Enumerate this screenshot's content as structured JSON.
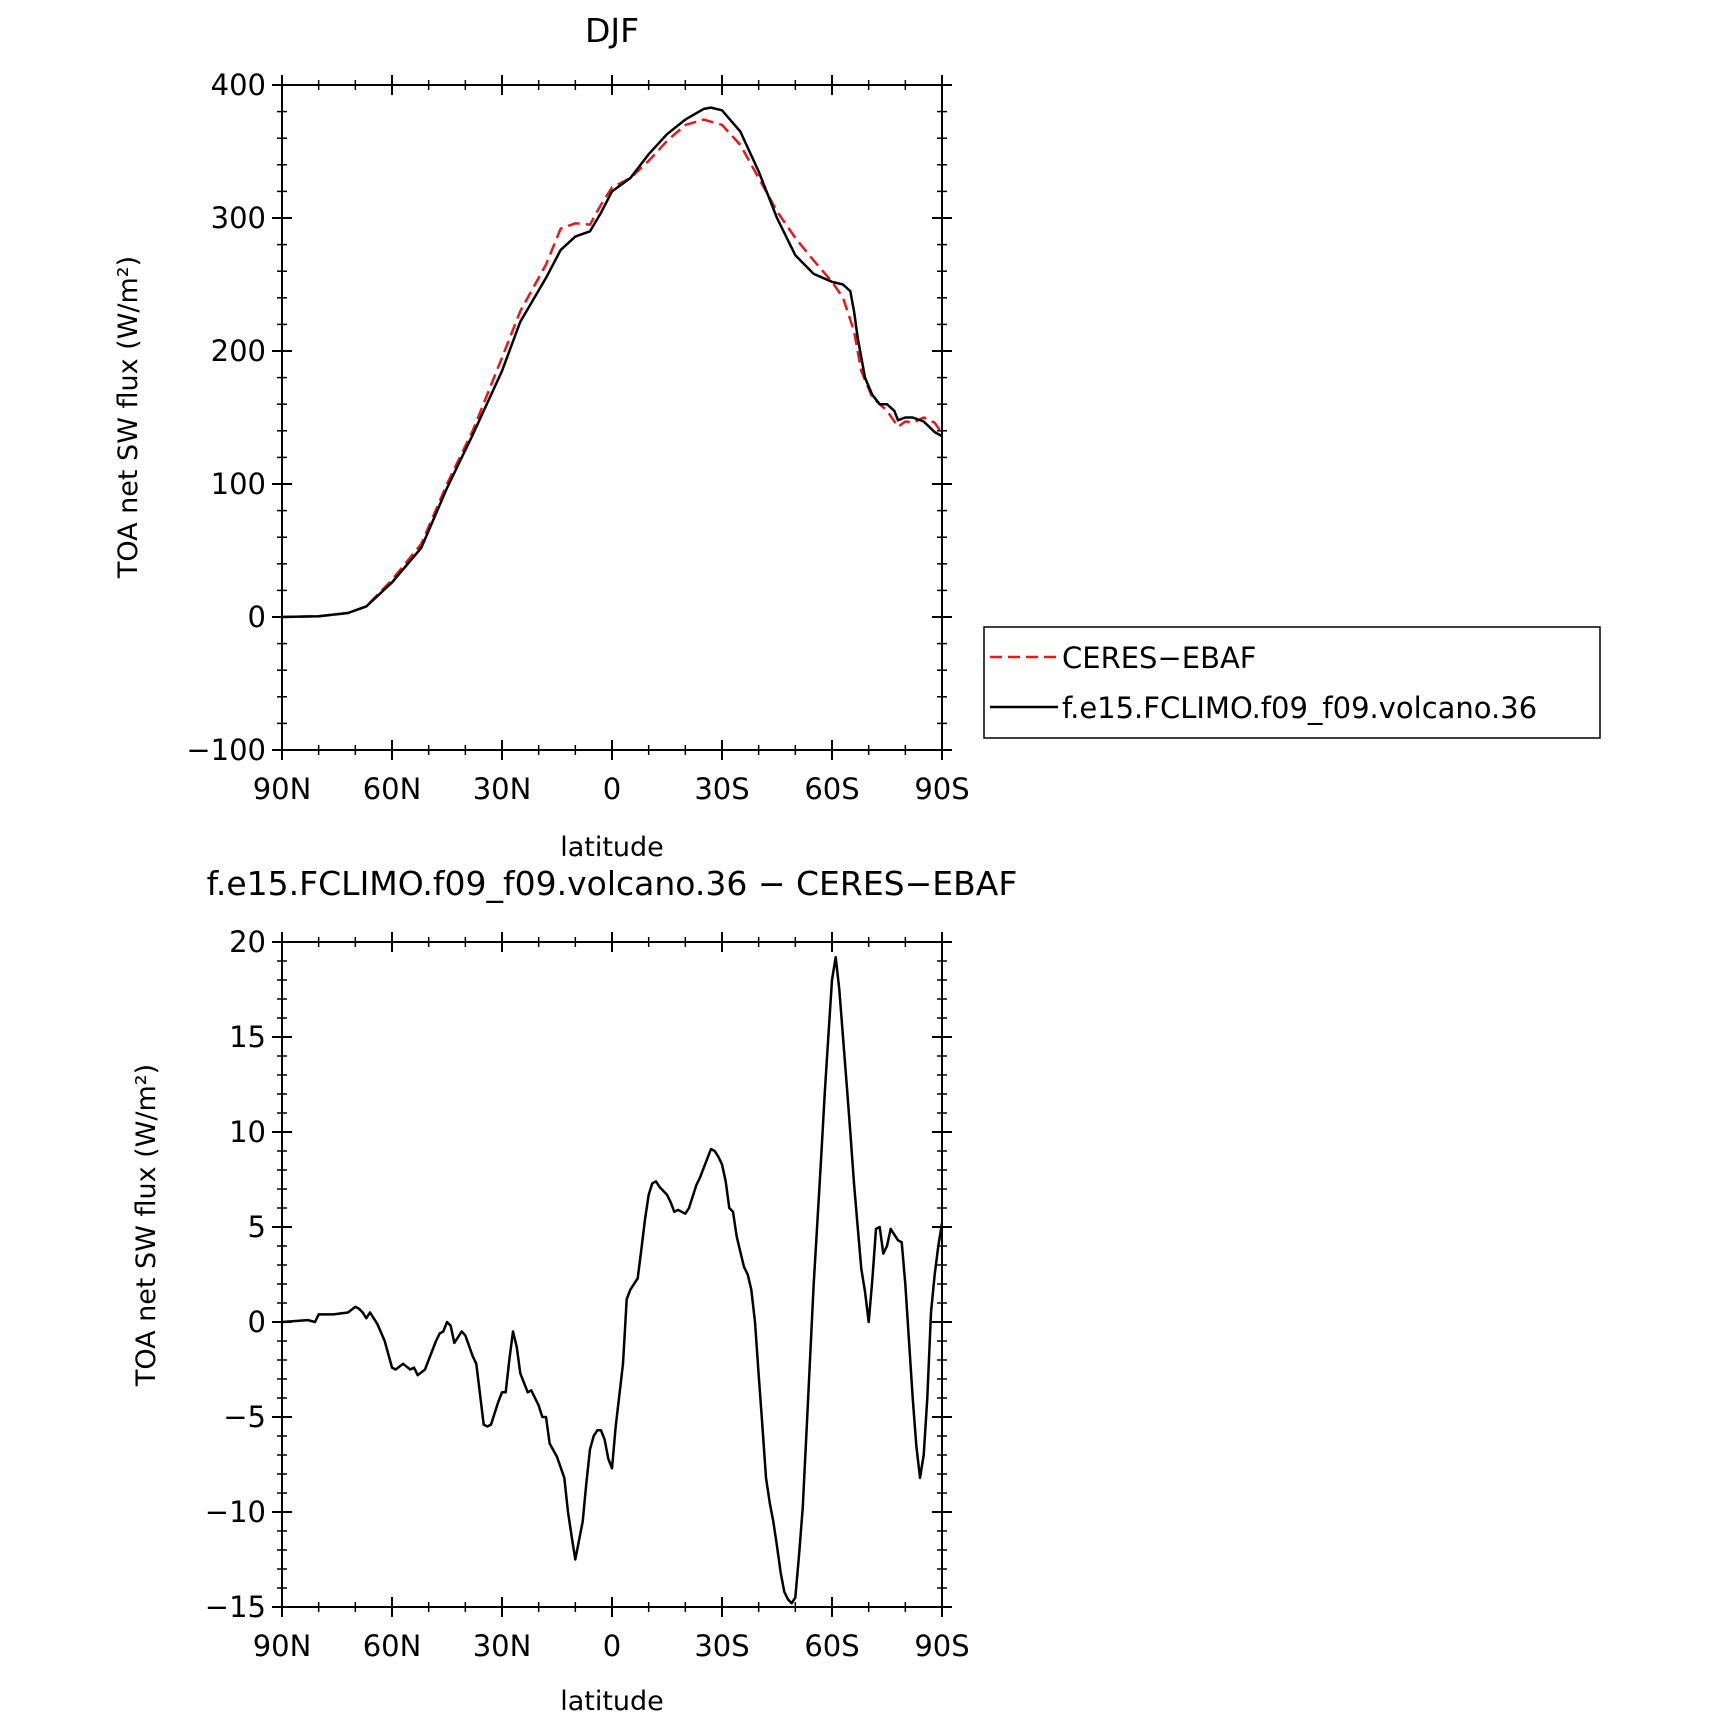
{
  "chart_data": [
    {
      "type": "line",
      "title": "DJF",
      "xlabel": "latitude",
      "ylabel": "TOA net SW flux (W/m²)",
      "xlim": [
        90,
        -90
      ],
      "ylim": [
        -100,
        400
      ],
      "xticks": [
        {
          "value": 90,
          "label": "90N"
        },
        {
          "value": 60,
          "label": "60N"
        },
        {
          "value": 30,
          "label": "30N"
        },
        {
          "value": 0,
          "label": "0"
        },
        {
          "value": -30,
          "label": "30S"
        },
        {
          "value": -60,
          "label": "60S"
        },
        {
          "value": -90,
          "label": "90S"
        }
      ],
      "yticks": [
        {
          "value": 400,
          "label": "400"
        },
        {
          "value": 300,
          "label": "300"
        },
        {
          "value": 200,
          "label": "200"
        },
        {
          "value": 100,
          "label": "100"
        },
        {
          "value": 0,
          "label": "0"
        },
        {
          "value": -100,
          "label": "−100"
        }
      ],
      "legend": {
        "position": "right"
      },
      "series": [
        {
          "name": "CERES−EBAF",
          "color": "#e31a1c",
          "dash": "dashed",
          "x": [
            90,
            80,
            72,
            67,
            60,
            52,
            45,
            38,
            30,
            25,
            18,
            14,
            10,
            6,
            3,
            0,
            -5,
            -10,
            -15,
            -20,
            -25,
            -30,
            -35,
            -40,
            -45,
            -50,
            -55,
            -60,
            -63,
            -66,
            -68,
            -71,
            -75,
            -78,
            -80,
            -82,
            -85,
            -88,
            -90
          ],
          "y": [
            0,
            0.5,
            3,
            8,
            28,
            55,
            100,
            140,
            195,
            230,
            265,
            292,
            296,
            295,
            310,
            323,
            330,
            343,
            358,
            370,
            374,
            370,
            355,
            330,
            305,
            285,
            268,
            252,
            240,
            215,
            185,
            165,
            155,
            143,
            147,
            146,
            150,
            146,
            138
          ]
        },
        {
          "name": "f.e15.FCLIMO.f09_f09.volcano.36",
          "color": "#000000",
          "dash": "solid",
          "x": [
            90,
            80,
            72,
            67,
            60,
            52,
            45,
            38,
            30,
            25,
            18,
            14,
            10,
            6,
            3,
            0,
            -5,
            -10,
            -15,
            -20,
            -25,
            -27,
            -30,
            -35,
            -40,
            -45,
            -50,
            -55,
            -60,
            -63,
            -65,
            -66,
            -67,
            -69,
            -71,
            -73,
            -75,
            -77,
            -78,
            -80,
            -82,
            -85,
            -88,
            -90
          ],
          "y": [
            0,
            0.6,
            3,
            8,
            26,
            52,
            97,
            137,
            185,
            222,
            255,
            276,
            286,
            290,
            304,
            320,
            330,
            348,
            363,
            374,
            382,
            383,
            381,
            365,
            335,
            300,
            272,
            258,
            252,
            250,
            245,
            230,
            210,
            180,
            167,
            160,
            160,
            155,
            148,
            150,
            150,
            147,
            139,
            136
          ]
        }
      ]
    },
    {
      "type": "line",
      "title": "f.e15.FCLIMO.f09_f09.volcano.36 − CERES−EBAF",
      "xlabel": "latitude",
      "ylabel": "TOA net SW flux (W/m²)",
      "xlim": [
        90,
        -90
      ],
      "ylim": [
        -15,
        20
      ],
      "xticks": [
        {
          "value": 90,
          "label": "90N"
        },
        {
          "value": 60,
          "label": "60N"
        },
        {
          "value": 30,
          "label": "30N"
        },
        {
          "value": 0,
          "label": "0"
        },
        {
          "value": -30,
          "label": "30S"
        },
        {
          "value": -60,
          "label": "60S"
        },
        {
          "value": -90,
          "label": "90S"
        }
      ],
      "yticks": [
        {
          "value": 20,
          "label": "20"
        },
        {
          "value": 15,
          "label": "15"
        },
        {
          "value": 10,
          "label": "10"
        },
        {
          "value": 5,
          "label": "5"
        },
        {
          "value": 0,
          "label": "0"
        },
        {
          "value": -5,
          "label": "−5"
        },
        {
          "value": -10,
          "label": "−10"
        },
        {
          "value": -15,
          "label": "−15"
        }
      ],
      "series": [
        {
          "color": "#000000",
          "dash": "solid",
          "x": [
            90,
            83,
            81,
            80,
            76,
            72,
            70,
            69,
            68,
            67,
            66,
            65,
            64,
            62,
            60,
            59,
            57,
            55,
            54,
            53,
            51,
            49,
            48,
            47,
            46,
            45,
            44,
            43,
            41,
            40,
            38,
            37,
            36,
            35,
            34,
            33,
            31,
            30,
            29,
            28,
            27,
            26,
            25,
            24,
            23,
            22,
            21,
            20,
            19,
            18,
            17,
            15,
            13,
            12,
            11,
            10,
            9,
            8,
            7,
            6,
            5,
            4,
            3,
            2,
            1,
            0,
            -1,
            -3,
            -4,
            -5,
            -7,
            -8,
            -9,
            -10,
            -11,
            -12,
            -13,
            -14,
            -15,
            -16,
            -17,
            -18,
            -20,
            -21,
            -23,
            -24,
            -26,
            -27,
            -28,
            -29,
            -30,
            -31,
            -32,
            -33,
            -34,
            -35,
            -36,
            -37,
            -38,
            -39,
            -40,
            -41,
            -42,
            -43,
            -44,
            -45,
            -46,
            -47,
            -48,
            -49,
            -50,
            -51,
            -52,
            -53,
            -54,
            -55,
            -56,
            -57,
            -58,
            -59,
            -60,
            -61,
            -62,
            -63,
            -64,
            -65,
            -66,
            -67,
            -68,
            -69,
            -70,
            -71,
            -72,
            -73,
            -74,
            -75,
            -76,
            -77,
            -78,
            -79,
            -80,
            -81,
            -82,
            -83,
            -84,
            -85,
            -86,
            -87,
            -88,
            -89,
            -90
          ],
          "y": [
            0,
            0.1,
            0,
            0.4,
            0.4,
            0.5,
            0.8,
            0.7,
            0.5,
            0.2,
            0.5,
            0.2,
            -0.1,
            -1.0,
            -2.4,
            -2.5,
            -2.2,
            -2.5,
            -2.4,
            -2.8,
            -2.5,
            -1.5,
            -1.0,
            -0.6,
            -0.5,
            0,
            -0.2,
            -1.1,
            -0.5,
            -0.7,
            -1.8,
            -2.2,
            -3.8,
            -5.4,
            -5.5,
            -5.4,
            -4.2,
            -3.7,
            -3.7,
            -2.0,
            -0.5,
            -1.3,
            -2.7,
            -3.2,
            -3.7,
            -3.6,
            -4.0,
            -4.4,
            -5.0,
            -5.0,
            -6.4,
            -7.1,
            -8.2,
            -10.0,
            -11.3,
            -12.5,
            -11.5,
            -10.5,
            -8.5,
            -6.7,
            -6.0,
            -5.7,
            -5.7,
            -6.2,
            -7.2,
            -7.7,
            -5.5,
            -2.2,
            1.2,
            1.7,
            2.3,
            3.8,
            5.4,
            6.7,
            7.3,
            7.4,
            7.1,
            6.9,
            6.7,
            6.3,
            5.8,
            5.9,
            5.7,
            6.0,
            7.2,
            7.6,
            8.6,
            9.1,
            9.0,
            8.7,
            8.3,
            7.4,
            6.0,
            5.8,
            4.5,
            3.7,
            2.9,
            2.5,
            1.7,
            0,
            -2.8,
            -5.4,
            -8.2,
            -9.5,
            -10.5,
            -11.8,
            -13.2,
            -14.2,
            -14.6,
            -14.8,
            -14.5,
            -12.3,
            -9.8,
            -6.0,
            -2.0,
            2.0,
            5.2,
            8.5,
            12.0,
            15.0,
            18.0,
            19.2,
            17.5,
            15.0,
            12.5,
            10.0,
            7.3,
            5.0,
            2.8,
            1.6,
            0,
            2.2,
            4.9,
            5.0,
            3.6,
            4.0,
            4.9,
            4.6,
            4.3,
            4.2,
            2.0,
            -1.0,
            -4.0,
            -6.5,
            -8.2,
            -7.0,
            -4.0,
            0.5,
            2.5,
            4.0,
            5.2
          ]
        }
      ]
    }
  ]
}
